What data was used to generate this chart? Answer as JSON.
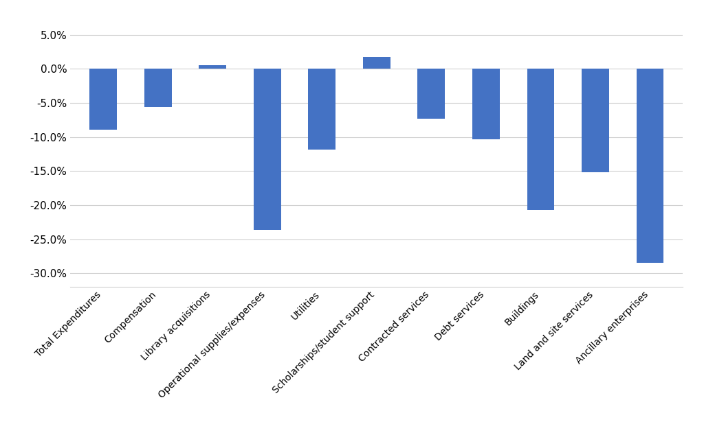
{
  "categories": [
    "Total Expenditures",
    "Compensation",
    "Library acquisitions",
    "Operational supplies/expenses",
    "Utilities",
    "Scholarships/student support",
    "Contracted services",
    "Debt services",
    "Buildings",
    "Land and site services",
    "Ancillary enterprises"
  ],
  "values": [
    -0.089,
    -0.056,
    0.005,
    -0.236,
    -0.118,
    0.017,
    -0.073,
    -0.103,
    -0.207,
    -0.152,
    -0.285
  ],
  "bar_color": "#4472C4",
  "ylim": [
    -0.32,
    0.07
  ],
  "yticks": [
    0.05,
    0.0,
    -0.05,
    -0.1,
    -0.15,
    -0.2,
    -0.25,
    -0.3
  ],
  "background_color": "#ffffff",
  "grid_color": "#d0d0d0",
  "figsize": [
    10.24,
    6.15
  ],
  "dpi": 100
}
